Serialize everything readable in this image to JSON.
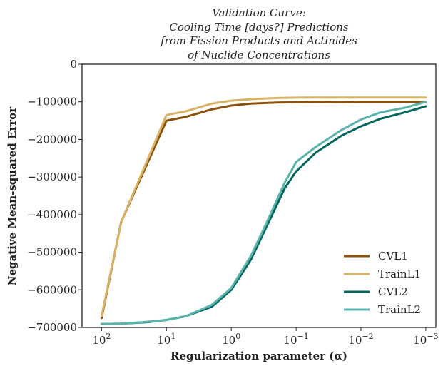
{
  "chart_data": {
    "type": "line",
    "title": [
      "Validation Curve:",
      "Cooling Time [days?] Predictions",
      "from Fission Products and Actinides",
      "of Nuclide Concentrations"
    ],
    "xlabel": "Regularization parameter (α)",
    "ylabel": "Negative Mean-squared Error",
    "x_scale": "log",
    "x_reversed": true,
    "xlim": [
      200,
      0.0007
    ],
    "ylim": [
      -700000,
      0
    ],
    "grid": false,
    "legend_position": "lower-right",
    "x_ticks": [
      {
        "value": 100,
        "base": "10",
        "exp": "2"
      },
      {
        "value": 10,
        "base": "10",
        "exp": "1"
      },
      {
        "value": 1,
        "base": "10",
        "exp": "0"
      },
      {
        "value": 0.1,
        "base": "10",
        "exp": "−1"
      },
      {
        "value": 0.01,
        "base": "10",
        "exp": "−2"
      },
      {
        "value": 0.001,
        "base": "10",
        "exp": "−3"
      }
    ],
    "y_ticks": [
      {
        "value": 0,
        "label": "0"
      },
      {
        "value": -100000,
        "label": "−100000"
      },
      {
        "value": -200000,
        "label": "−200000"
      },
      {
        "value": -300000,
        "label": "−300000"
      },
      {
        "value": -400000,
        "label": "−400000"
      },
      {
        "value": -500000,
        "label": "−500000"
      },
      {
        "value": -600000,
        "label": "−600000"
      },
      {
        "value": -700000,
        "label": "−700000"
      }
    ],
    "series": [
      {
        "name": "CVL1",
        "color": "#8c510a",
        "points": [
          [
            100,
            -675000
          ],
          [
            50,
            -420000
          ],
          [
            10,
            -150000
          ],
          [
            5,
            -140000
          ],
          [
            2,
            -120000
          ],
          [
            1,
            -110000
          ],
          [
            0.5,
            -105000
          ],
          [
            0.2,
            -102000
          ],
          [
            0.1,
            -101000
          ],
          [
            0.05,
            -100000
          ],
          [
            0.02,
            -101000
          ],
          [
            0.01,
            -100000
          ],
          [
            0.005,
            -100000
          ],
          [
            0.002,
            -100000
          ],
          [
            0.001,
            -100000
          ]
        ]
      },
      {
        "name": "TrainL1",
        "color": "#d8b365",
        "points": [
          [
            100,
            -670000
          ],
          [
            50,
            -420000
          ],
          [
            10,
            -135000
          ],
          [
            5,
            -125000
          ],
          [
            2,
            -105000
          ],
          [
            1,
            -97000
          ],
          [
            0.5,
            -93000
          ],
          [
            0.2,
            -90000
          ],
          [
            0.1,
            -89000
          ],
          [
            0.05,
            -88500
          ],
          [
            0.02,
            -88500
          ],
          [
            0.01,
            -88500
          ],
          [
            0.005,
            -88500
          ],
          [
            0.002,
            -88500
          ],
          [
            0.001,
            -88500
          ]
        ]
      },
      {
        "name": "CVL2",
        "color": "#01665e",
        "points": [
          [
            100,
            -691000
          ],
          [
            50,
            -690000
          ],
          [
            20,
            -686000
          ],
          [
            10,
            -680000
          ],
          [
            5,
            -670000
          ],
          [
            2,
            -645000
          ],
          [
            1,
            -600000
          ],
          [
            0.5,
            -520000
          ],
          [
            0.3,
            -440000
          ],
          [
            0.15,
            -330000
          ],
          [
            0.1,
            -285000
          ],
          [
            0.05,
            -235000
          ],
          [
            0.02,
            -190000
          ],
          [
            0.01,
            -165000
          ],
          [
            0.005,
            -145000
          ],
          [
            0.002,
            -127000
          ],
          [
            0.001,
            -112000
          ]
        ]
      },
      {
        "name": "TrainL2",
        "color": "#5ab4ac",
        "points": [
          [
            100,
            -691000
          ],
          [
            50,
            -690000
          ],
          [
            20,
            -685000
          ],
          [
            10,
            -680000
          ],
          [
            5,
            -670000
          ],
          [
            2,
            -640000
          ],
          [
            1,
            -595000
          ],
          [
            0.5,
            -510000
          ],
          [
            0.3,
            -430000
          ],
          [
            0.15,
            -315000
          ],
          [
            0.1,
            -260000
          ],
          [
            0.05,
            -220000
          ],
          [
            0.02,
            -175000
          ],
          [
            0.01,
            -147000
          ],
          [
            0.005,
            -128000
          ],
          [
            0.002,
            -115000
          ],
          [
            0.001,
            -100000
          ]
        ]
      }
    ]
  }
}
